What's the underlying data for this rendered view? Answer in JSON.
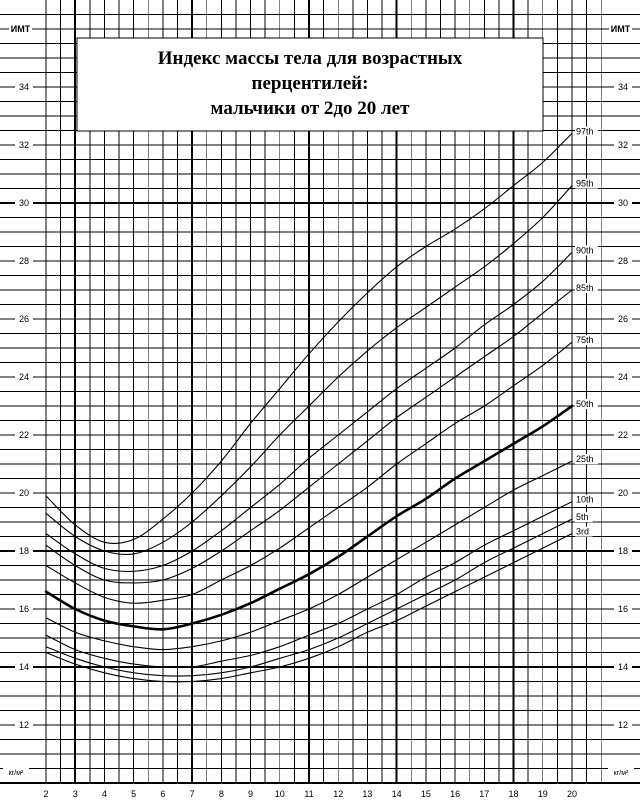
{
  "chart_data": {
    "type": "line",
    "title": [
      "Индекс массы тела для возрастных",
      "перцентилей:",
      "мальчики от 2до 20 лет"
    ],
    "ylabel": "ИМТ",
    "yunit": "кг/м²",
    "x": [
      2,
      3,
      4,
      5,
      6,
      7,
      8,
      9,
      10,
      11,
      12,
      13,
      14,
      15,
      16,
      17,
      18,
      19,
      20
    ],
    "xticks": [
      2,
      3,
      4,
      5,
      6,
      7,
      8,
      9,
      10,
      11,
      12,
      13,
      14,
      15,
      16,
      17,
      18,
      19,
      20
    ],
    "yticks": [
      12,
      14,
      16,
      18,
      20,
      22,
      24,
      26,
      28,
      30,
      32,
      34
    ],
    "xlim": [
      2,
      21
    ],
    "ylim": [
      10,
      37
    ],
    "grid": true,
    "colors": {
      "line": "#000000",
      "grid": "#000000",
      "background": "#ffffff"
    },
    "series": [
      {
        "name": "97th",
        "values": [
          19.9,
          18.9,
          18.3,
          18.4,
          19.1,
          20.0,
          21.1,
          22.4,
          23.6,
          24.8,
          25.9,
          26.9,
          27.8,
          28.5,
          29.1,
          29.8,
          30.6,
          31.4,
          32.4
        ]
      },
      {
        "name": "95th",
        "values": [
          19.3,
          18.5,
          18.0,
          17.9,
          18.3,
          19.0,
          19.9,
          20.9,
          22.0,
          23.0,
          24.0,
          24.9,
          25.7,
          26.4,
          27.1,
          27.8,
          28.6,
          29.5,
          30.6
        ]
      },
      {
        "name": "90th",
        "values": [
          18.6,
          17.9,
          17.4,
          17.3,
          17.5,
          18.0,
          18.7,
          19.5,
          20.3,
          21.2,
          22.0,
          22.8,
          23.6,
          24.3,
          25.0,
          25.8,
          26.5,
          27.3,
          28.3
        ]
      },
      {
        "name": "85th",
        "values": [
          18.2,
          17.5,
          17.0,
          16.9,
          17.0,
          17.4,
          18.0,
          18.7,
          19.4,
          20.2,
          21.0,
          21.8,
          22.6,
          23.3,
          24.0,
          24.7,
          25.4,
          26.2,
          27.0
        ]
      },
      {
        "name": "75th",
        "values": [
          17.5,
          16.9,
          16.4,
          16.2,
          16.3,
          16.5,
          17.0,
          17.5,
          18.1,
          18.8,
          19.5,
          20.2,
          21.0,
          21.7,
          22.4,
          23.0,
          23.7,
          24.4,
          25.2
        ]
      },
      {
        "name": "50th",
        "bold": true,
        "values": [
          16.6,
          16.0,
          15.6,
          15.4,
          15.3,
          15.5,
          15.8,
          16.2,
          16.7,
          17.2,
          17.8,
          18.5,
          19.2,
          19.8,
          20.5,
          21.1,
          21.7,
          22.3,
          23.0
        ]
      },
      {
        "name": "25th",
        "values": [
          15.7,
          15.2,
          14.9,
          14.7,
          14.6,
          14.7,
          14.9,
          15.2,
          15.6,
          16.0,
          16.5,
          17.1,
          17.7,
          18.3,
          18.9,
          19.5,
          20.1,
          20.6,
          21.1
        ]
      },
      {
        "name": "10th",
        "values": [
          15.1,
          14.6,
          14.3,
          14.1,
          14.0,
          14.0,
          14.2,
          14.4,
          14.7,
          15.1,
          15.5,
          16.0,
          16.5,
          17.1,
          17.6,
          18.2,
          18.7,
          19.2,
          19.7
        ]
      },
      {
        "name": "5th",
        "values": [
          14.7,
          14.3,
          14.0,
          13.8,
          13.7,
          13.7,
          13.8,
          14.0,
          14.3,
          14.6,
          15.0,
          15.5,
          16.0,
          16.5,
          17.0,
          17.6,
          18.1,
          18.6,
          19.1
        ]
      },
      {
        "name": "3rd",
        "values": [
          14.5,
          14.1,
          13.8,
          13.6,
          13.5,
          13.5,
          13.6,
          13.8,
          14.0,
          14.3,
          14.7,
          15.2,
          15.6,
          16.1,
          16.6,
          17.1,
          17.6,
          18.1,
          18.6
        ]
      }
    ]
  }
}
